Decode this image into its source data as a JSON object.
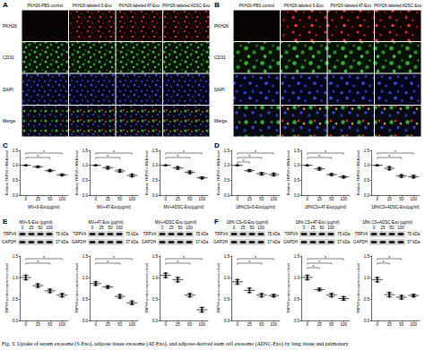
{
  "caption": "Fig. 3. Uptake of serum exosome (S-Exo), adipose tissue exosome (AT-Exo), and adipose-derived stem cell exosome (ADSC-Exo) by lung tissue and pulmonary",
  "panels": [
    {
      "label": "A",
      "image_grid": {
        "columns": [
          "PKH26-PBS control",
          "PKH26-labeled S-Exo",
          "PKH26-labeled AT-Exo",
          "PKH26-labeled ADSC-Exo"
        ],
        "rows": [
          "PKH26",
          "CD31",
          "DAPI",
          "Merge"
        ]
      }
    },
    {
      "label": "B",
      "image_grid": {
        "columns": [
          "PKH26-PBS control",
          "PKH26-labeled S-Exo",
          "PKH26-labeled AT-Exo",
          "PKH26-labeled ADSC-Exo"
        ],
        "rows": [
          "PKH26",
          "CD31",
          "DAPI",
          "Merge"
        ]
      }
    },
    {
      "label": "C"
    },
    {
      "label": "D"
    },
    {
      "label": "E",
      "blots": [
        {
          "header": "MV+S-Exo (μg/ml)",
          "lanes": [
            "0",
            "25",
            "50",
            "100"
          ],
          "rows": [
            {
              "name": "TRPV4",
              "size": "75 kDa"
            },
            {
              "name": "GAPDH",
              "size": "37 kDa"
            }
          ]
        },
        {
          "header": "MV+AT-Exo (μg/ml)",
          "lanes": [
            "0",
            "25",
            "50",
            "100"
          ],
          "rows": [
            {
              "name": "TRPV4",
              "size": "75 kDa"
            },
            {
              "name": "GAPDH",
              "size": "37 kDa"
            }
          ]
        },
        {
          "header": "MV+ADSC-Exo (μg/ml)",
          "lanes": [
            "0",
            "25",
            "50",
            "100"
          ],
          "rows": [
            {
              "name": "TRPV4",
              "size": "75 kDa"
            },
            {
              "name": "GAPDH",
              "size": "37 kDa"
            }
          ]
        }
      ]
    },
    {
      "label": "F",
      "blots": [
        {
          "header": "18% CS+S-Exo (μg/ml)",
          "lanes": [
            "0",
            "25",
            "50",
            "100"
          ],
          "rows": [
            {
              "name": "TRPV4",
              "size": "75 kDa"
            },
            {
              "name": "GAPDH",
              "size": "37 kDa"
            }
          ]
        },
        {
          "header": "18% CS+AT-Exo (μg/ml)",
          "lanes": [
            "0",
            "25",
            "50",
            "100"
          ],
          "rows": [
            {
              "name": "TRPV4",
              "size": "75 kDa"
            },
            {
              "name": "GAPDH",
              "size": "37 kDa"
            }
          ]
        },
        {
          "header": "18% CS+ADSC-Exo (μg/ml)",
          "lanes": [
            "0",
            "25",
            "50",
            "100"
          ],
          "rows": [
            {
              "name": "TRPV4",
              "size": "75 kDa"
            },
            {
              "name": "GAPDH",
              "size": "37 kDa"
            }
          ]
        }
      ]
    }
  ],
  "chart_data": [
    {
      "type": "scatter",
      "x_label": "MV+S-Exo(μg/ml)",
      "y_label": "Relative TRPV4 mRNA level",
      "categories": [
        "0",
        "25",
        "50",
        "100"
      ],
      "values": [
        [
          1.0,
          1.0,
          1.0
        ],
        [
          0.93,
          0.95,
          0.97
        ],
        [
          0.8,
          0.82,
          0.85
        ],
        [
          0.65,
          0.68,
          0.7
        ]
      ],
      "mean": [
        1.0,
        0.95,
        0.82,
        0.68
      ],
      "error": [
        0,
        0.02,
        0.03,
        0.03
      ],
      "ylim": [
        0,
        1.5
      ],
      "yticks": [
        {
          "value": 0,
          "label": "0.0"
        },
        0.5,
        {
          "value": 1,
          "label": "1.0"
        },
        1.5
      ],
      "color": "#000000",
      "marker": "circle",
      "grid": false,
      "annotations": [
        {
          "from": "0",
          "to": "100",
          "text": "*"
        },
        {
          "from": "0",
          "to": "50",
          "text": "*"
        }
      ]
    },
    {
      "type": "scatter",
      "x_label": "MV+AT-Exo(μg/ml)",
      "y_label": "Relative TRPV4 mRNA level",
      "categories": [
        "0",
        "25",
        "50",
        "100"
      ],
      "values": [
        [
          1.0,
          1.0,
          1.0
        ],
        [
          0.88,
          0.92,
          0.95
        ],
        [
          0.78,
          0.8,
          0.85
        ],
        [
          0.62,
          0.66,
          0.7
        ]
      ],
      "mean": [
        1.0,
        0.92,
        0.81,
        0.66
      ],
      "error": [
        0,
        0.04,
        0.04,
        0.04
      ],
      "ylim": [
        0,
        1.5
      ],
      "yticks": [
        {
          "value": 0,
          "label": "0.0"
        },
        0.5,
        {
          "value": 1,
          "label": "1.0"
        },
        1.5
      ],
      "color": "#000000",
      "marker": "circle",
      "grid": false,
      "annotations": [
        {
          "from": "0",
          "to": "100",
          "text": "*"
        },
        {
          "from": "0",
          "to": "50",
          "text": "*"
        }
      ]
    },
    {
      "type": "scatter",
      "x_label": "MV+ADSC-Exo(μg/ml)",
      "y_label": "Relative TRPV4 mRNA level",
      "categories": [
        "0",
        "25",
        "50",
        "100"
      ],
      "values": [
        [
          1.0,
          1.0,
          1.0
        ],
        [
          0.88,
          0.9,
          0.95
        ],
        [
          0.72,
          0.78,
          0.8
        ],
        [
          0.55,
          0.58,
          0.6
        ]
      ],
      "mean": [
        1.0,
        0.91,
        0.77,
        0.58
      ],
      "error": [
        0,
        0.04,
        0.04,
        0.03
      ],
      "ylim": [
        0,
        1.5
      ],
      "yticks": [
        {
          "value": 0,
          "label": "0.0"
        },
        0.5,
        {
          "value": 1,
          "label": "1.0"
        },
        1.5
      ],
      "color": "#000000",
      "marker": "circle",
      "grid": false,
      "annotations": [
        {
          "from": "0",
          "to": "100",
          "text": "*"
        },
        {
          "from": "0",
          "to": "50",
          "text": "*"
        }
      ]
    },
    {
      "type": "scatter",
      "x_label": "18%CS+S-Exo(μg/ml)",
      "y_label": "Relative TRPV4 mRNA level",
      "categories": [
        "0",
        "25",
        "50",
        "100"
      ],
      "values": [
        [
          1.0,
          1.0,
          1.0
        ],
        [
          0.8,
          0.82,
          0.85
        ],
        [
          0.68,
          0.72,
          0.75
        ],
        [
          0.65,
          0.7,
          0.73
        ]
      ],
      "mean": [
        1.0,
        0.82,
        0.72,
        0.69
      ],
      "error": [
        0,
        0.03,
        0.04,
        0.04
      ],
      "ylim": [
        0,
        1.5
      ],
      "yticks": [
        {
          "value": 0,
          "label": "0.0"
        },
        0.5,
        {
          "value": 1,
          "label": "1.0"
        },
        1.5
      ],
      "color": "#000000",
      "marker": "circle",
      "grid": false,
      "annotations": [
        {
          "from": "0",
          "to": "100",
          "text": "*"
        },
        {
          "from": "0",
          "to": "50",
          "text": "*"
        },
        {
          "from": "0",
          "to": "25",
          "text": "*"
        }
      ]
    },
    {
      "type": "scatter",
      "x_label": "18%CS+AT-Exo(μg/ml)",
      "y_label": "Relative TRPV4 mRNA level",
      "categories": [
        "0",
        "25",
        "50",
        "100"
      ],
      "values": [
        [
          1.0,
          1.0,
          1.0
        ],
        [
          0.85,
          0.88,
          0.92
        ],
        [
          0.66,
          0.7,
          0.72
        ],
        [
          0.58,
          0.6,
          0.64
        ]
      ],
      "mean": [
        1.0,
        0.88,
        0.69,
        0.61
      ],
      "error": [
        0,
        0.04,
        0.03,
        0.03
      ],
      "ylim": [
        0,
        1.5
      ],
      "yticks": [
        {
          "value": 0,
          "label": "0.0"
        },
        0.5,
        {
          "value": 1,
          "label": "1.0"
        },
        1.5
      ],
      "color": "#000000",
      "marker": "circle",
      "grid": false,
      "annotations": [
        {
          "from": "0",
          "to": "100",
          "text": "*"
        },
        {
          "from": "0",
          "to": "50",
          "text": "*"
        }
      ]
    },
    {
      "type": "scatter",
      "x_label": "18%CS+ADSC-Exo(μg/ml)",
      "y_label": "Relative TRPV4 mRNA level",
      "categories": [
        "0",
        "25",
        "50",
        "100"
      ],
      "values": [
        [
          1.0,
          1.0,
          1.0
        ],
        [
          0.85,
          0.9,
          0.95
        ],
        [
          0.6,
          0.65,
          0.68
        ],
        [
          0.58,
          0.62,
          0.66
        ]
      ],
      "mean": [
        1.0,
        0.9,
        0.64,
        0.62
      ],
      "error": [
        0,
        0.05,
        0.04,
        0.04
      ],
      "ylim": [
        0,
        1.5
      ],
      "yticks": [
        {
          "value": 0,
          "label": "0.0"
        },
        0.5,
        {
          "value": 1,
          "label": "1.0"
        },
        1.5
      ],
      "color": "#000000",
      "marker": "circle",
      "grid": false,
      "annotations": [
        {
          "from": "0",
          "to": "100",
          "text": "*"
        },
        {
          "from": "0",
          "to": "50",
          "text": "*"
        }
      ]
    },
    {
      "type": "scatter",
      "y_label": "TRPV4 protein expression level",
      "categories": [
        "0",
        "25",
        "50",
        "100"
      ],
      "values": [
        [
          0.95,
          1.0,
          1.05
        ],
        [
          0.78,
          0.8,
          0.85
        ],
        [
          0.65,
          0.7,
          0.72
        ],
        [
          0.55,
          0.6,
          0.62
        ]
      ],
      "mean": [
        1.0,
        0.81,
        0.69,
        0.59
      ],
      "error": [
        0.05,
        0.04,
        0.04,
        0.04
      ],
      "ylim": [
        0,
        1.5
      ],
      "yticks": [
        {
          "value": 0,
          "label": "0.0"
        },
        0.5,
        {
          "value": 1,
          "label": "1.0"
        },
        1.5
      ],
      "color": "#000000",
      "marker": "circle",
      "grid": false,
      "annotations": [
        {
          "from": "0",
          "to": "100",
          "text": "*"
        },
        {
          "from": "0",
          "to": "50",
          "text": "*"
        }
      ]
    },
    {
      "type": "scatter",
      "y_label": "TRPV4 protein expression level",
      "categories": [
        "0",
        "25",
        "50",
        "100"
      ],
      "values": [
        [
          0.82,
          0.85,
          0.9
        ],
        [
          0.75,
          0.78,
          0.8
        ],
        [
          0.52,
          0.55,
          0.6
        ],
        [
          0.38,
          0.4,
          0.45
        ]
      ],
      "mean": [
        0.86,
        0.78,
        0.56,
        0.41
      ],
      "error": [
        0.04,
        0.03,
        0.04,
        0.04
      ],
      "ylim": [
        0,
        1.5
      ],
      "yticks": [
        {
          "value": 0,
          "label": "0.0"
        },
        0.5,
        {
          "value": 1,
          "label": "1.0"
        },
        1.5
      ],
      "color": "#000000",
      "marker": "circle",
      "grid": false,
      "annotations": [
        {
          "from": "0",
          "to": "100",
          "text": "*"
        },
        {
          "from": "0",
          "to": "50",
          "text": "*"
        }
      ]
    },
    {
      "type": "scatter",
      "y_label": "TRPV4 protein expression level",
      "categories": [
        "0",
        "25",
        "50",
        "100"
      ],
      "values": [
        [
          1.0,
          1.05,
          1.1
        ],
        [
          0.9,
          0.95,
          1.0
        ],
        [
          0.55,
          0.6,
          0.62
        ],
        [
          0.2,
          0.25,
          0.3
        ]
      ],
      "mean": [
        1.05,
        0.95,
        0.59,
        0.25
      ],
      "error": [
        0.05,
        0.05,
        0.04,
        0.05
      ],
      "ylim": [
        0,
        1.5
      ],
      "yticks": [
        {
          "value": 0,
          "label": "0.0"
        },
        0.5,
        {
          "value": 1,
          "label": "1.0"
        },
        1.5
      ],
      "color": "#000000",
      "marker": "circle",
      "grid": false,
      "annotations": [
        {
          "from": "0",
          "to": "100",
          "text": "*"
        },
        {
          "from": "0",
          "to": "50",
          "text": "*"
        }
      ]
    },
    {
      "type": "scatter",
      "y_label": "TRPV4 protein expression level",
      "categories": [
        "0",
        "25",
        "50",
        "100"
      ],
      "values": [
        [
          0.85,
          0.9,
          0.95
        ],
        [
          0.65,
          0.7,
          0.75
        ],
        [
          0.55,
          0.6,
          0.62
        ],
        [
          0.55,
          0.58,
          0.6
        ]
      ],
      "mean": [
        0.9,
        0.7,
        0.59,
        0.58
      ],
      "error": [
        0.05,
        0.05,
        0.04,
        0.03
      ],
      "ylim": [
        0,
        1.5
      ],
      "yticks": [
        {
          "value": 0,
          "label": "0.0"
        },
        0.5,
        {
          "value": 1,
          "label": "1.0"
        },
        1.5
      ],
      "color": "#000000",
      "marker": "circle",
      "grid": false,
      "annotations": [
        {
          "from": "0",
          "to": "100",
          "text": "*"
        },
        {
          "from": "0",
          "to": "50",
          "text": "*"
        }
      ]
    },
    {
      "type": "scatter",
      "y_label": "TRPV4 protein expression level",
      "categories": [
        "0",
        "25",
        "50",
        "100"
      ],
      "values": [
        [
          0.95,
          1.0,
          1.05
        ],
        [
          0.7,
          0.72,
          0.75
        ],
        [
          0.55,
          0.6,
          0.62
        ],
        [
          0.48,
          0.5,
          0.55
        ]
      ],
      "mean": [
        1.0,
        0.72,
        0.59,
        0.51
      ],
      "error": [
        0.05,
        0.03,
        0.04,
        0.04
      ],
      "ylim": [
        0,
        1.5
      ],
      "yticks": [
        {
          "value": 0,
          "label": "0.0"
        },
        0.5,
        {
          "value": 1,
          "label": "1.0"
        },
        1.5
      ],
      "color": "#000000",
      "marker": "circle",
      "grid": false,
      "annotations": [
        {
          "from": "0",
          "to": "100",
          "text": "*"
        },
        {
          "from": "0",
          "to": "50",
          "text": "*"
        },
        {
          "from": "0",
          "to": "25",
          "text": "*"
        }
      ]
    },
    {
      "type": "scatter",
      "y_label": "TRPV4 protein expression level",
      "categories": [
        "0",
        "25",
        "50",
        "100"
      ],
      "values": [
        [
          0.9,
          0.95,
          1.0
        ],
        [
          0.55,
          0.6,
          0.65
        ],
        [
          0.5,
          0.55,
          0.58
        ],
        [
          0.55,
          0.58,
          0.6
        ]
      ],
      "mean": [
        0.95,
        0.6,
        0.54,
        0.58
      ],
      "error": [
        0.05,
        0.05,
        0.04,
        0.03
      ],
      "ylim": [
        0,
        1.5
      ],
      "yticks": [
        {
          "value": 0,
          "label": "0.0"
        },
        0.5,
        {
          "value": 1,
          "label": "1.0"
        },
        1.5
      ],
      "color": "#000000",
      "marker": "circle",
      "grid": false,
      "annotations": [
        {
          "from": "0",
          "to": "50",
          "text": "*"
        },
        {
          "from": "0",
          "to": "25",
          "text": "*"
        }
      ]
    }
  ]
}
